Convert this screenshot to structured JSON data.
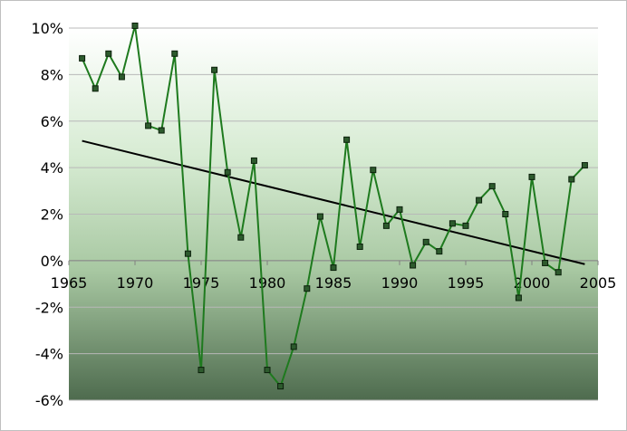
{
  "chart_data": {
    "type": "line",
    "title": "",
    "xlabel": "",
    "ylabel": "",
    "xlim": [
      1965,
      2005
    ],
    "ylim": [
      -6,
      10
    ],
    "x_ticks": [
      1965,
      1970,
      1975,
      1980,
      1985,
      1990,
      1995,
      2000,
      2005
    ],
    "x_tick_labels": [
      "1965",
      "1970",
      "1975",
      "1980",
      "1985",
      "1990",
      "1995",
      "2000",
      "2005"
    ],
    "y_ticks": [
      -6,
      -4,
      -2,
      0,
      2,
      4,
      6,
      8,
      10
    ],
    "y_tick_labels": [
      "-6%",
      "-4%",
      "-2%",
      "0%",
      "2%",
      "4%",
      "6%",
      "8%",
      "10%"
    ],
    "grid": "horizontal",
    "legend": "none",
    "series": [
      {
        "x": [
          1966,
          1967,
          1968,
          1969,
          1970,
          1971,
          1972,
          1973,
          1974,
          1975,
          1976,
          1977,
          1978,
          1979,
          1980,
          1981,
          1982,
          1983,
          1984,
          1985,
          1986,
          1987,
          1988,
          1989,
          1990,
          1991,
          1992,
          1993,
          1994,
          1995,
          1996,
          1997,
          1998,
          1999,
          2000,
          2001,
          2002,
          2003,
          2004
        ],
        "values": [
          8.7,
          7.4,
          8.9,
          7.9,
          10.1,
          5.8,
          5.6,
          8.9,
          0.3,
          -4.7,
          8.2,
          3.8,
          1.0,
          4.3,
          -4.7,
          -5.4,
          -3.7,
          -1.2,
          1.9,
          -0.3,
          5.2,
          0.6,
          3.9,
          1.5,
          2.2,
          -0.2,
          0.8,
          0.4,
          1.6,
          1.5,
          2.6,
          3.2,
          2.0,
          -1.6,
          3.6,
          -0.1,
          -0.5,
          3.5,
          4.1
        ],
        "color": "#1e7a1e"
      }
    ],
    "trendline": {
      "x": [
        1966,
        2004
      ],
      "values": [
        5.15,
        -0.15
      ],
      "color": "#000000"
    }
  },
  "colors": {
    "plot_top": "#ffffff",
    "plot_bottom": "#4e6b4e",
    "grid": "#b8b8b8",
    "marker_fill": "#2d5a2d",
    "marker_stroke": "#0a1f0a"
  }
}
